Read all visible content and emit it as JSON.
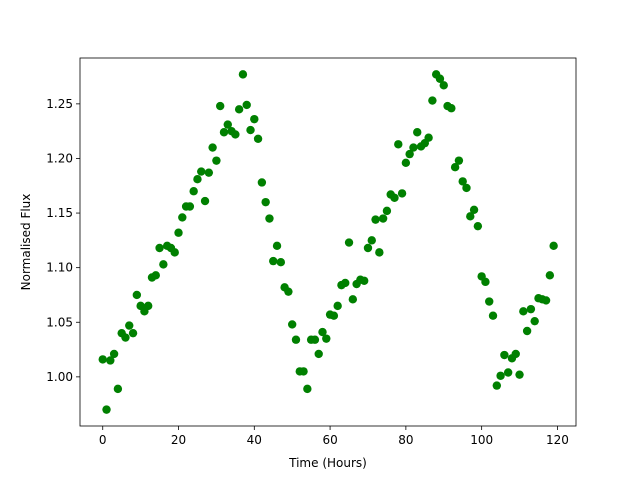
{
  "chart_data": {
    "type": "scatter",
    "xlabel": "Time (Hours)",
    "ylabel": "Normalised Flux",
    "xlim": [
      -6,
      124.9
    ],
    "ylim": [
      0.955,
      1.292
    ],
    "xticks": [
      0,
      20,
      40,
      60,
      80,
      100,
      120
    ],
    "yticks": [
      {
        "value": 1,
        "label": "1.00"
      },
      1.05,
      {
        "value": 1.1,
        "label": "1.10"
      },
      1.15,
      {
        "value": 1.2,
        "label": "1.20"
      },
      1.25
    ],
    "grid": false,
    "series": [
      {
        "color": "#008000",
        "x": [
          0,
          1,
          2,
          3,
          4,
          5,
          6,
          7,
          8,
          9,
          10,
          11,
          12,
          13,
          14,
          15,
          16,
          17,
          18,
          19,
          20,
          21,
          22,
          23,
          24,
          25,
          26,
          27,
          28,
          29,
          30,
          31,
          32,
          33,
          34,
          35,
          36,
          37,
          38,
          39,
          40,
          41,
          42,
          43,
          44,
          45,
          46,
          47,
          48,
          49,
          50,
          51,
          52,
          53,
          54,
          55,
          56,
          57,
          58,
          59,
          60,
          61,
          62,
          63,
          64,
          65,
          66,
          67,
          68,
          69,
          70,
          71,
          72,
          73,
          74,
          75,
          76,
          77,
          78,
          79,
          80,
          81,
          82,
          83,
          84,
          85,
          86,
          87,
          88,
          89,
          90,
          91,
          92,
          93,
          94,
          95,
          96,
          97,
          98,
          99,
          100,
          101,
          102,
          103,
          104,
          105,
          106,
          107,
          108,
          109,
          110,
          111,
          112,
          113,
          114,
          115,
          116,
          117,
          118,
          119
        ],
        "values": [
          1.016,
          0.97,
          1.015,
          1.021,
          0.989,
          1.04,
          1.036,
          1.047,
          1.04,
          1.075,
          1.065,
          1.06,
          1.065,
          1.091,
          1.093,
          1.118,
          1.103,
          1.12,
          1.118,
          1.114,
          1.132,
          1.146,
          1.156,
          1.156,
          1.17,
          1.181,
          1.188,
          1.161,
          1.187,
          1.21,
          1.198,
          1.248,
          1.224,
          1.231,
          1.225,
          1.222,
          1.245,
          1.277,
          1.249,
          1.226,
          1.236,
          1.218,
          1.178,
          1.16,
          1.145,
          1.106,
          1.12,
          1.105,
          1.082,
          1.078,
          1.048,
          1.034,
          1.005,
          1.005,
          0.989,
          1.034,
          1.034,
          1.021,
          1.041,
          1.035,
          1.057,
          1.056,
          1.065,
          1.084,
          1.086,
          1.123,
          1.071,
          1.085,
          1.089,
          1.088,
          1.118,
          1.125,
          1.144,
          1.114,
          1.145,
          1.152,
          1.167,
          1.164,
          1.213,
          1.168,
          1.196,
          1.204,
          1.21,
          1.224,
          1.211,
          1.214,
          1.219,
          1.253,
          1.277,
          1.273,
          1.267,
          1.248,
          1.246,
          1.192,
          1.198,
          1.179,
          1.173,
          1.147,
          1.153,
          1.138,
          1.092,
          1.087,
          1.069,
          1.056,
          0.992,
          1.001,
          1.02,
          1.004,
          1.017,
          1.021,
          1.002,
          1.06,
          1.042,
          1.062,
          1.051,
          1.072,
          1.071,
          1.07,
          1.093,
          1.12
        ]
      }
    ]
  }
}
